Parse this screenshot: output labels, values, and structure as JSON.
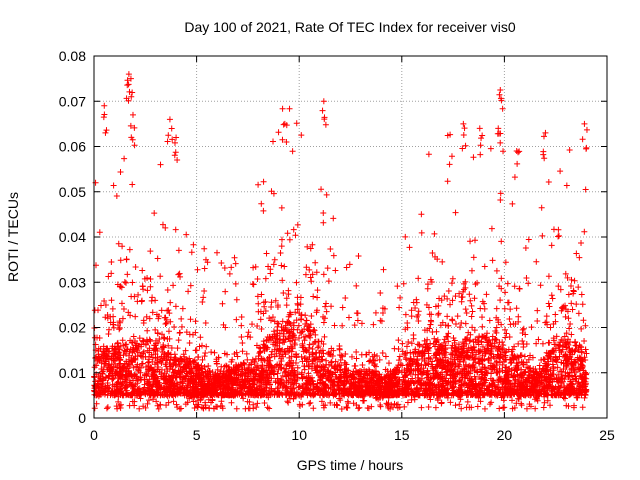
{
  "chart_data": {
    "type": "scatter",
    "title": "Day 100 of 2021, Rate Of TEC Index for receiver vis0",
    "xlabel": "GPS time / hours",
    "ylabel": "ROTI / TECUs",
    "xlim": [
      0,
      25
    ],
    "ylim": [
      0,
      0.08
    ],
    "x_ticks": [
      0,
      5,
      10,
      15,
      20,
      25
    ],
    "x_tick_labels": [
      "0",
      "5",
      "10",
      "15",
      "20",
      "25"
    ],
    "y_ticks": [
      0,
      0.01,
      0.02,
      0.03,
      0.04,
      0.05,
      0.06,
      0.07,
      0.08
    ],
    "y_tick_labels": [
      "0",
      "0.01",
      "0.02",
      "0.03",
      "0.04",
      "0.05",
      "0.06",
      "0.07",
      "0.08"
    ],
    "grid": true,
    "marker": "+",
    "series": [
      {
        "name": "ROTI",
        "color": "#ff0000",
        "x_range": [
          0,
          24
        ],
        "baseline_range": [
          0.002,
          0.03
        ],
        "notable_points": [
          {
            "x": 0.5,
            "y": 0.069
          },
          {
            "x": 1.7,
            "y": 0.076
          },
          {
            "x": 1.8,
            "y": 0.075
          },
          {
            "x": 1.9,
            "y": 0.067
          },
          {
            "x": 3.7,
            "y": 0.066
          },
          {
            "x": 4.0,
            "y": 0.062
          },
          {
            "x": 9.3,
            "y": 0.065
          },
          {
            "x": 11.2,
            "y": 0.07
          },
          {
            "x": 18.0,
            "y": 0.065
          },
          {
            "x": 18.8,
            "y": 0.064
          },
          {
            "x": 19.7,
            "y": 0.064
          },
          {
            "x": 19.8,
            "y": 0.0725
          },
          {
            "x": 20.6,
            "y": 0.059
          },
          {
            "x": 22.0,
            "y": 0.063
          },
          {
            "x": 23.9,
            "y": 0.065
          }
        ]
      }
    ]
  }
}
